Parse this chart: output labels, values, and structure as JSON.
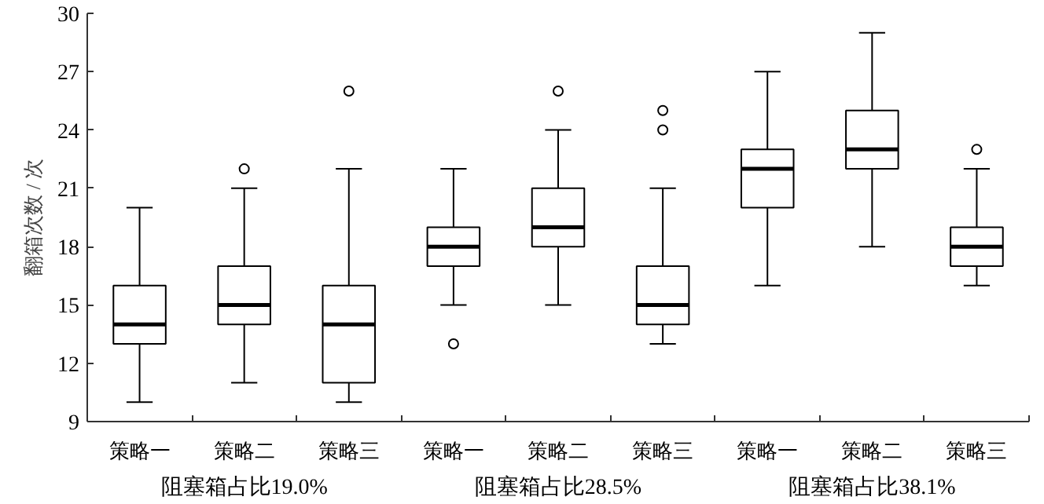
{
  "chart_data": {
    "type": "box",
    "ylabel": "翻箱次数 / 次",
    "categories": [
      "策略一",
      "策略二",
      "策略三",
      "策略一",
      "策略二",
      "策略三",
      "策略一",
      "策略二",
      "策略三"
    ],
    "boxes": [
      {
        "low": 10,
        "q1": 13,
        "median": 14,
        "q3": 16,
        "high": 20
      },
      {
        "low": 11,
        "q1": 14,
        "median": 15,
        "q3": 17,
        "high": 21,
        "outliers": [
          22
        ]
      },
      {
        "low": 10,
        "q1": 11,
        "median": 14,
        "q3": 16,
        "high": 22,
        "outliers": [
          26
        ]
      },
      {
        "low": 15,
        "q1": 17,
        "median": 18,
        "q3": 19,
        "high": 22,
        "outliers": [
          13
        ]
      },
      {
        "low": 15,
        "q1": 18,
        "median": 19,
        "q3": 21,
        "high": 24,
        "outliers": [
          26
        ]
      },
      {
        "low": 13,
        "q1": 14,
        "median": 15,
        "q3": 17,
        "high": 21,
        "outliers": [
          24,
          25
        ]
      },
      {
        "low": 16,
        "q1": 20,
        "median": 22,
        "q3": 23,
        "high": 27
      },
      {
        "low": 18,
        "q1": 22,
        "median": 23,
        "q3": 25,
        "high": 29
      },
      {
        "low": 16,
        "q1": 17,
        "median": 18,
        "q3": 19,
        "high": 22,
        "outliers": [
          23
        ]
      }
    ],
    "annotations": [
      "阻塞箱占比19.0%",
      "阻塞箱占比28.5%",
      "阻塞箱占比38.1%"
    ],
    "ylim": [
      9,
      30
    ],
    "yticks": [
      9,
      12,
      15,
      18,
      21,
      24,
      27,
      30
    ],
    "color": "#000000",
    "grid": false
  }
}
